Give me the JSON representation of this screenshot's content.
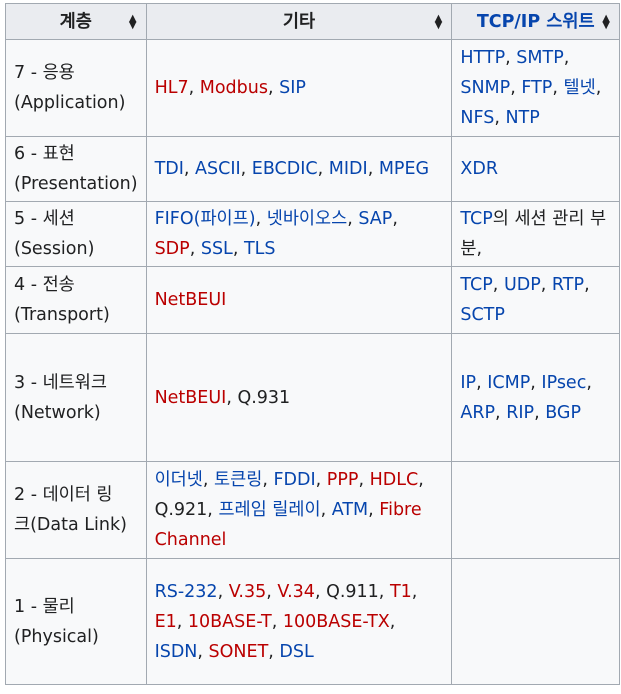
{
  "headers": [
    "계층",
    "기타",
    "TCP/IP 스위트"
  ],
  "rows": [
    {
      "layer_line1": "7 - 응용",
      "layer_line2": "(Application)",
      "other": [
        {
          "text": "HL7",
          "type": "new"
        },
        {
          "text": ", ",
          "type": "plain"
        },
        {
          "text": "Modbus",
          "type": "new"
        },
        {
          "text": ", ",
          "type": "plain"
        },
        {
          "text": "SIP",
          "type": "link"
        }
      ],
      "tcpip": [
        {
          "text": "HTTP",
          "type": "link"
        },
        {
          "text": ", ",
          "type": "plain"
        },
        {
          "text": "SMTP",
          "type": "link"
        },
        {
          "text": ", ",
          "type": "plain"
        },
        {
          "text": "SNMP",
          "type": "link"
        },
        {
          "text": ", ",
          "type": "plain"
        },
        {
          "text": "FTP",
          "type": "link"
        },
        {
          "text": ", ",
          "type": "plain"
        },
        {
          "text": "텔넷",
          "type": "link"
        },
        {
          "text": ", ",
          "type": "plain"
        },
        {
          "text": "NFS",
          "type": "link"
        },
        {
          "text": ", ",
          "type": "plain"
        },
        {
          "text": "NTP",
          "type": "link"
        }
      ]
    },
    {
      "layer_line1": "6 - 표현",
      "layer_line2": "(Presentation)",
      "other": [
        {
          "text": "TDI",
          "type": "link"
        },
        {
          "text": ", ",
          "type": "plain"
        },
        {
          "text": "ASCII",
          "type": "link"
        },
        {
          "text": ", ",
          "type": "plain"
        },
        {
          "text": "EBCDIC",
          "type": "link"
        },
        {
          "text": ", ",
          "type": "plain"
        },
        {
          "text": "MIDI",
          "type": "link"
        },
        {
          "text": ", ",
          "type": "plain"
        },
        {
          "text": "MPEG",
          "type": "link"
        }
      ],
      "tcpip": [
        {
          "text": "XDR",
          "type": "link"
        }
      ]
    },
    {
      "layer_line1": "5 - 세션",
      "layer_line2": "(Session)",
      "other": [
        {
          "text": "FIFO(파이프)",
          "type": "link"
        },
        {
          "text": ", ",
          "type": "plain"
        },
        {
          "text": "넷바이오스",
          "type": "link"
        },
        {
          "text": ", ",
          "type": "plain"
        },
        {
          "text": "SAP",
          "type": "link"
        },
        {
          "text": ", ",
          "type": "plain"
        },
        {
          "text": "SDP",
          "type": "new"
        },
        {
          "text": ", ",
          "type": "plain"
        },
        {
          "text": "SSL",
          "type": "link"
        },
        {
          "text": ", ",
          "type": "plain"
        },
        {
          "text": "TLS",
          "type": "link"
        }
      ],
      "tcpip": [
        {
          "text": "TCP",
          "type": "link"
        },
        {
          "text": "의 세션 관리 부분,",
          "type": "plain"
        }
      ]
    },
    {
      "layer_line1": "4 - 전송",
      "layer_line2": "(Transport)",
      "other": [
        {
          "text": "NetBEUI",
          "type": "new"
        }
      ],
      "tcpip": [
        {
          "text": "TCP",
          "type": "link"
        },
        {
          "text": ", ",
          "type": "plain"
        },
        {
          "text": "UDP",
          "type": "link"
        },
        {
          "text": ", ",
          "type": "plain"
        },
        {
          "text": "RTP",
          "type": "link"
        },
        {
          "text": ", ",
          "type": "plain"
        },
        {
          "text": "SCTP",
          "type": "link"
        }
      ]
    },
    {
      "layer_line1": "3 - 네트워크",
      "layer_line2": "(Network)",
      "other": [
        {
          "text": "NetBEUI",
          "type": "new"
        },
        {
          "text": ", Q.931",
          "type": "plain"
        }
      ],
      "tcpip": [
        {
          "text": "IP",
          "type": "link"
        },
        {
          "text": ", ",
          "type": "plain"
        },
        {
          "text": "ICMP",
          "type": "link"
        },
        {
          "text": ", ",
          "type": "plain"
        },
        {
          "text": "IPsec",
          "type": "link"
        },
        {
          "text": ", ",
          "type": "plain"
        },
        {
          "text": "ARP",
          "type": "link"
        },
        {
          "text": ", ",
          "type": "plain"
        },
        {
          "text": "RIP",
          "type": "link"
        },
        {
          "text": ", ",
          "type": "plain"
        },
        {
          "text": "BGP",
          "type": "link"
        }
      ]
    },
    {
      "layer_line1": "2 - 데이터 링",
      "layer_line2": "크(Data Link)",
      "other": [
        {
          "text": "이더넷",
          "type": "link"
        },
        {
          "text": ", ",
          "type": "plain"
        },
        {
          "text": "토큰링",
          "type": "link"
        },
        {
          "text": ", ",
          "type": "plain"
        },
        {
          "text": "FDDI",
          "type": "link"
        },
        {
          "text": ", ",
          "type": "plain"
        },
        {
          "text": "PPP",
          "type": "new"
        },
        {
          "text": ", ",
          "type": "plain"
        },
        {
          "text": "HDLC",
          "type": "new"
        },
        {
          "text": ", Q.921, ",
          "type": "plain"
        },
        {
          "text": "프레임 릴레이",
          "type": "link"
        },
        {
          "text": ", ",
          "type": "plain"
        },
        {
          "text": "ATM",
          "type": "link"
        },
        {
          "text": ", ",
          "type": "plain"
        },
        {
          "text": "Fibre Channel",
          "type": "new"
        }
      ],
      "tcpip": []
    },
    {
      "layer_line1": "1 - 물리",
      "layer_line2": "(Physical)",
      "other": [
        {
          "text": "RS-232",
          "type": "link"
        },
        {
          "text": ", ",
          "type": "plain"
        },
        {
          "text": "V.35",
          "type": "new"
        },
        {
          "text": ", ",
          "type": "plain"
        },
        {
          "text": "V.34",
          "type": "new"
        },
        {
          "text": ", Q.911, ",
          "type": "plain"
        },
        {
          "text": "T1",
          "type": "new"
        },
        {
          "text": ", ",
          "type": "plain"
        },
        {
          "text": "E1",
          "type": "new"
        },
        {
          "text": ", ",
          "type": "plain"
        },
        {
          "text": "10BASE-T",
          "type": "new"
        },
        {
          "text": ", ",
          "type": "plain"
        },
        {
          "text": "100BASE-TX",
          "type": "new"
        },
        {
          "text": ", ",
          "type": "plain"
        },
        {
          "text": "ISDN",
          "type": "link"
        },
        {
          "text": ", ",
          "type": "plain"
        },
        {
          "text": "SONET",
          "type": "new"
        },
        {
          "text": ", ",
          "type": "plain"
        },
        {
          "text": "DSL",
          "type": "link"
        }
      ],
      "tcpip": []
    }
  ],
  "colors": {
    "link": "#0645ad",
    "new_link": "#ba0000",
    "text": "#202122",
    "header_bg": "#eaecf0",
    "cell_bg": "#f8f9fa",
    "border": "#a2a9b1"
  },
  "icons": {
    "sort": "sort-icon"
  }
}
